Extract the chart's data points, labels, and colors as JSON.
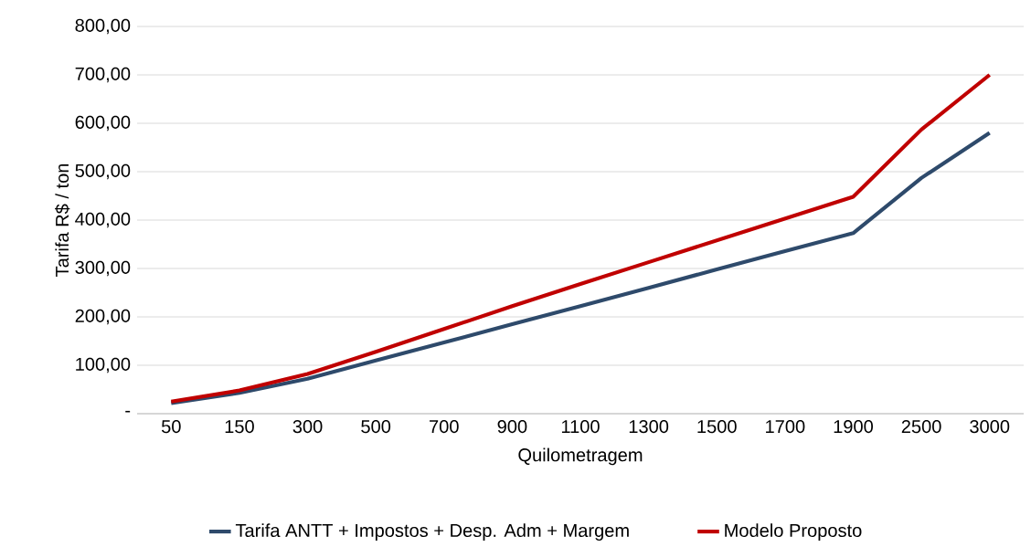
{
  "chart_data": {
    "type": "line",
    "xlabel": "Quilometragem",
    "ylabel": "Tarifa R$ / ton",
    "categories": [
      "50",
      "150",
      "300",
      "500",
      "700",
      "900",
      "1100",
      "1300",
      "1500",
      "1700",
      "1900",
      "2500",
      "3000"
    ],
    "series": [
      {
        "name": "Tarifa ANTT + Impostos + Desp. Adm + Margem",
        "color": "#2e4a6b",
        "values": [
          22,
          43,
          72,
          110,
          147,
          185,
          222,
          260,
          298,
          336,
          373,
          487,
          580
        ]
      },
      {
        "name": "Modelo Proposto",
        "color": "#c00000",
        "values": [
          25,
          48,
          82,
          128,
          175,
          222,
          268,
          313,
          358,
          403,
          448,
          587,
          700
        ]
      }
    ],
    "ylim": [
      0,
      800
    ],
    "yticks": [
      {
        "value": 0,
        "label": "-"
      },
      {
        "value": 100,
        "label": "100,00"
      },
      {
        "value": 200,
        "label": "200,00"
      },
      {
        "value": 300,
        "label": "300,00"
      },
      {
        "value": 400,
        "label": "400,00"
      },
      {
        "value": 500,
        "label": "500,00"
      },
      {
        "value": 600,
        "label": "600,00"
      },
      {
        "value": 700,
        "label": "700,00"
      },
      {
        "value": 800,
        "label": "800,00"
      }
    ],
    "grid": "y",
    "legend": "bottom",
    "marker": "none",
    "line_style": "solid"
  }
}
